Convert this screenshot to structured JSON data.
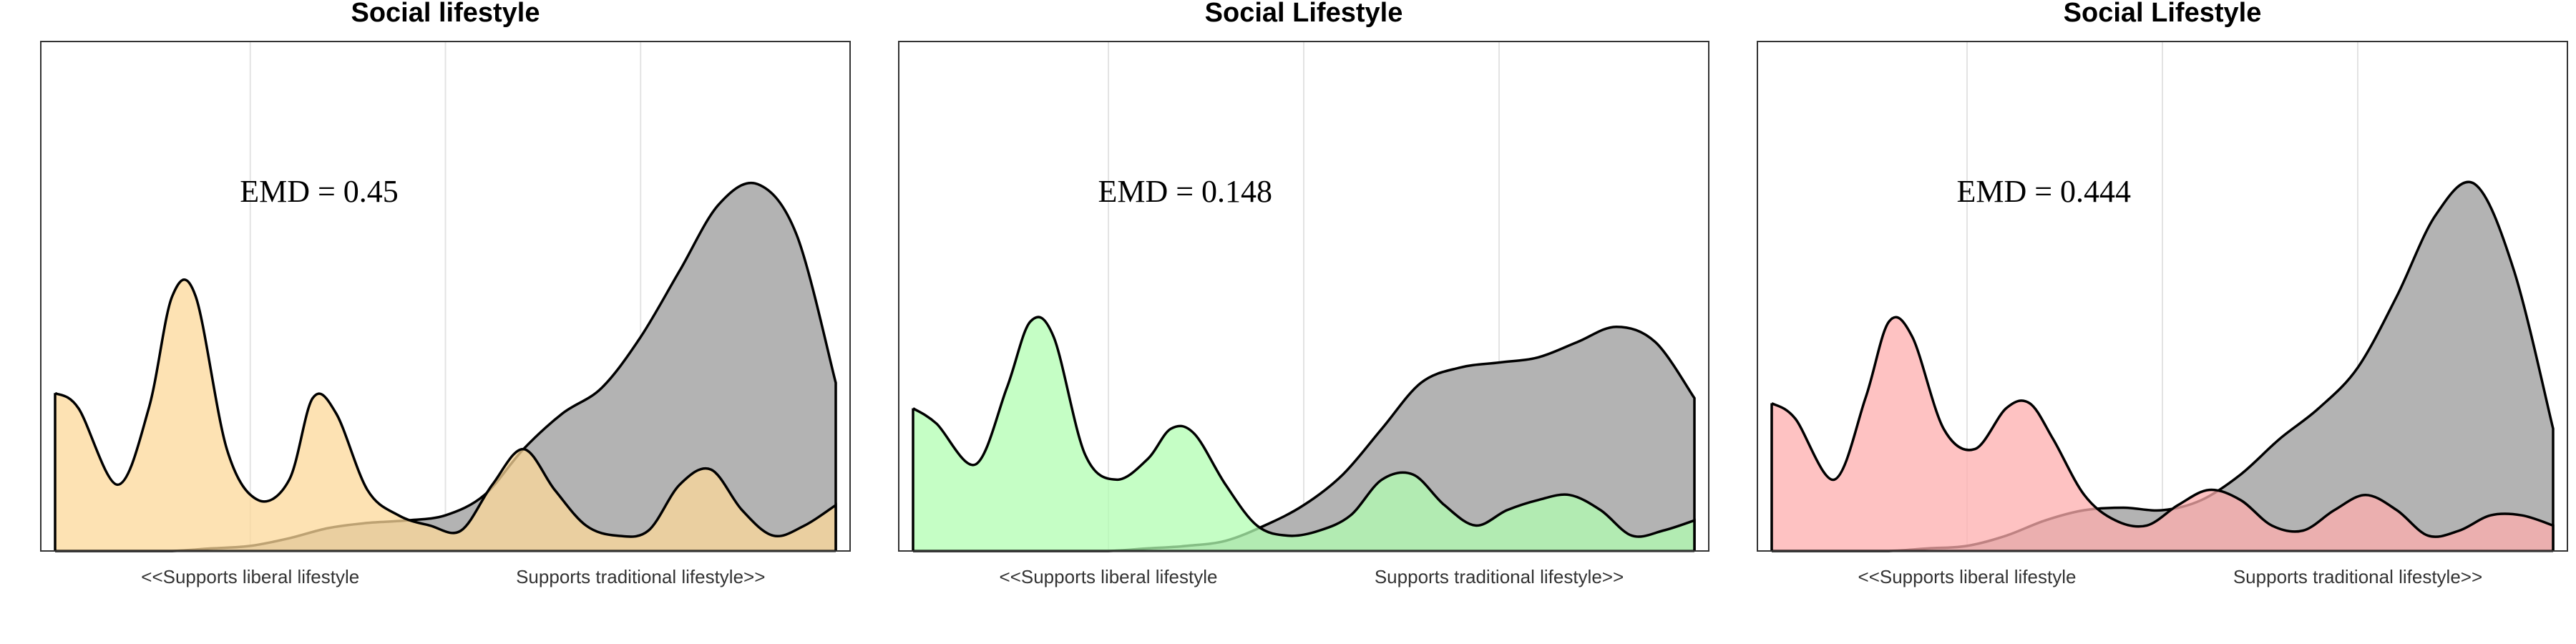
{
  "colors": {
    "comparison": "#9e9e9e",
    "grid": "#e3e3e3",
    "frame": "#333333"
  },
  "chart_data": [
    {
      "type": "area",
      "title": "Social lifestyle",
      "annotation": "EMD = 0.45",
      "x_tick_labels": [
        "<<Supports liberal lifestyle",
        "Supports traditional lifestyle>>"
      ],
      "x_tick_positions": [
        0.25,
        0.75
      ],
      "xlim": [
        0,
        1
      ],
      "grid": true,
      "series": [
        {
          "color": "#b3b3b3",
          "x": [
            0.0,
            0.05,
            0.1,
            0.15,
            0.2,
            0.25,
            0.3,
            0.35,
            0.4,
            0.45,
            0.5,
            0.55,
            0.6,
            0.65,
            0.7,
            0.75,
            0.8,
            0.85,
            0.9,
            0.95,
            1.0
          ],
          "y": [
            0.0,
            0.0,
            0.0,
            0.0,
            0.005,
            0.01,
            0.025,
            0.045,
            0.055,
            0.06,
            0.07,
            0.11,
            0.2,
            0.27,
            0.32,
            0.42,
            0.55,
            0.68,
            0.72,
            0.62,
            0.33
          ]
        },
        {
          "color": "#fcd89a",
          "x": [
            0.0,
            0.03,
            0.08,
            0.12,
            0.15,
            0.18,
            0.22,
            0.26,
            0.3,
            0.33,
            0.36,
            0.4,
            0.44,
            0.48,
            0.52,
            0.56,
            0.6,
            0.64,
            0.68,
            0.72,
            0.76,
            0.8,
            0.84,
            0.88,
            0.92,
            0.96,
            1.0
          ],
          "y": [
            0.31,
            0.28,
            0.13,
            0.28,
            0.5,
            0.5,
            0.2,
            0.1,
            0.14,
            0.3,
            0.27,
            0.12,
            0.07,
            0.05,
            0.04,
            0.13,
            0.2,
            0.12,
            0.05,
            0.03,
            0.04,
            0.13,
            0.16,
            0.08,
            0.03,
            0.05,
            0.09
          ]
        }
      ]
    },
    {
      "type": "area",
      "title": "Social Lifestyle",
      "annotation": "EMD = 0.148",
      "x_tick_labels": [
        "<<Supports liberal lifestyle",
        "Supports traditional lifestyle>>"
      ],
      "x_tick_positions": [
        0.25,
        0.75
      ],
      "xlim": [
        0,
        1
      ],
      "grid": true,
      "series": [
        {
          "color": "#b3b3b3",
          "x": [
            0.0,
            0.05,
            0.1,
            0.15,
            0.2,
            0.25,
            0.3,
            0.35,
            0.4,
            0.45,
            0.5,
            0.55,
            0.6,
            0.65,
            0.7,
            0.75,
            0.8,
            0.85,
            0.9,
            0.95,
            1.0
          ],
          "y": [
            0.0,
            0.0,
            0.0,
            0.0,
            0.0,
            0.0,
            0.005,
            0.01,
            0.02,
            0.05,
            0.09,
            0.15,
            0.24,
            0.33,
            0.36,
            0.37,
            0.38,
            0.41,
            0.44,
            0.41,
            0.3
          ]
        },
        {
          "color": "#b1fdb1",
          "x": [
            0.0,
            0.03,
            0.08,
            0.12,
            0.15,
            0.18,
            0.22,
            0.26,
            0.3,
            0.33,
            0.36,
            0.4,
            0.44,
            0.48,
            0.52,
            0.56,
            0.6,
            0.64,
            0.68,
            0.72,
            0.76,
            0.8,
            0.84,
            0.88,
            0.92,
            0.96,
            1.0
          ],
          "y": [
            0.28,
            0.25,
            0.17,
            0.32,
            0.45,
            0.42,
            0.19,
            0.14,
            0.18,
            0.24,
            0.23,
            0.13,
            0.05,
            0.03,
            0.04,
            0.07,
            0.14,
            0.15,
            0.09,
            0.05,
            0.08,
            0.1,
            0.11,
            0.08,
            0.03,
            0.04,
            0.06
          ]
        }
      ]
    },
    {
      "type": "area",
      "title": "Social Lifestyle",
      "annotation": "EMD = 0.444",
      "x_tick_labels": [
        "<<Supports liberal lifestyle",
        "Supports traditional lifestyle>>"
      ],
      "x_tick_positions": [
        0.25,
        0.75
      ],
      "xlim": [
        0,
        1
      ],
      "grid": true,
      "series": [
        {
          "color": "#b3b3b3",
          "x": [
            0.0,
            0.05,
            0.1,
            0.15,
            0.2,
            0.25,
            0.3,
            0.35,
            0.4,
            0.45,
            0.5,
            0.55,
            0.6,
            0.65,
            0.7,
            0.75,
            0.8,
            0.85,
            0.9,
            0.95,
            1.0
          ],
          "y": [
            0.0,
            0.0,
            0.0,
            0.0,
            0.005,
            0.01,
            0.03,
            0.06,
            0.08,
            0.085,
            0.08,
            0.1,
            0.15,
            0.22,
            0.28,
            0.36,
            0.5,
            0.66,
            0.72,
            0.55,
            0.24
          ]
        },
        {
          "color": "#feaeae",
          "x": [
            0.0,
            0.03,
            0.08,
            0.12,
            0.15,
            0.18,
            0.22,
            0.26,
            0.3,
            0.33,
            0.36,
            0.4,
            0.44,
            0.48,
            0.52,
            0.56,
            0.6,
            0.64,
            0.68,
            0.72,
            0.76,
            0.8,
            0.84,
            0.88,
            0.92,
            0.96,
            1.0
          ],
          "y": [
            0.29,
            0.26,
            0.14,
            0.3,
            0.45,
            0.42,
            0.24,
            0.2,
            0.28,
            0.29,
            0.22,
            0.11,
            0.06,
            0.05,
            0.09,
            0.12,
            0.1,
            0.05,
            0.04,
            0.08,
            0.11,
            0.08,
            0.03,
            0.04,
            0.07,
            0.07,
            0.05
          ]
        }
      ]
    }
  ]
}
